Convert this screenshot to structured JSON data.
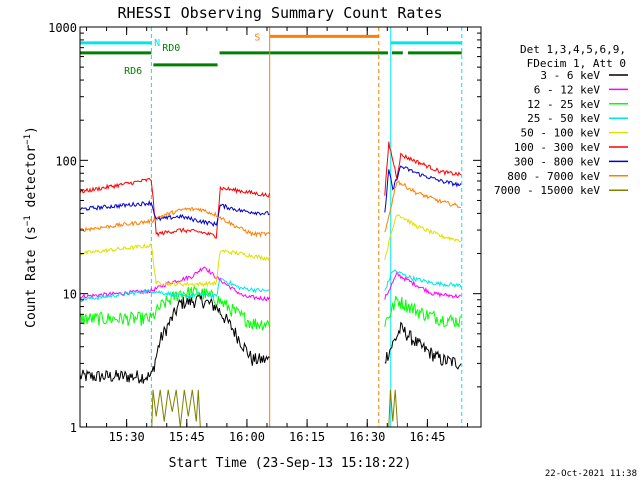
{
  "chart_data": {
    "type": "line",
    "title": "RHESSI Observing Summary Count Rates",
    "xlabel": "Start Time (23-Sep-13 15:18:22)",
    "ylabel": "Count Rate (s⁻¹ detector⁻¹)",
    "ylabel_base": "Count Rate (s",
    "ylabel_mid": " detector",
    "ylabel_end": ")",
    "ylabel_sup": "−1",
    "yscale": "log",
    "ylim": [
      1,
      1000
    ],
    "xlim_minutes_after_start": [
      0,
      100
    ],
    "x_tick_labels": [
      "15:30",
      "15:45",
      "16:00",
      "16:15",
      "16:30",
      "16:45"
    ],
    "x_tick_minutes": [
      11.63,
      26.63,
      41.63,
      56.63,
      71.63,
      86.63
    ],
    "y_tick_labels": [
      "1",
      "10",
      "100",
      "1000"
    ],
    "y_tick_values": [
      1,
      10,
      100,
      1000
    ],
    "grid": false,
    "legend_header": [
      "Det 1,3,4,5,6,9,",
      "FDecim 1, Att 0"
    ],
    "legend_position": "right",
    "footer_date": "22-Oct-2021 11:38",
    "flags": [
      {
        "label": "N",
        "color": "#00e5e5",
        "y": 760,
        "segments": [
          [
            0,
            17.8
          ],
          [
            77.5,
            95.2
          ]
        ]
      },
      {
        "label": "RD0",
        "color": "#008000",
        "y": 640,
        "segments": [
          [
            0,
            17.8
          ],
          [
            34.8,
            76.8
          ],
          [
            77.8,
            80.5
          ],
          [
            81.8,
            95.2
          ]
        ]
      },
      {
        "label": "RD6",
        "color": "#008000",
        "y": 520,
        "segments": [
          [
            18.3,
            34.3
          ]
        ]
      },
      {
        "label": "S",
        "color": "#ff8000",
        "y": 850,
        "segments": [
          [
            47.3,
            74.5
          ]
        ]
      }
    ],
    "vertical_markers": [
      {
        "minute": 17.8,
        "color": "#00e5e5",
        "style": "dashed"
      },
      {
        "minute": 47.3,
        "color": "#ff8000",
        "style": "solid"
      },
      {
        "minute": 74.5,
        "color": "#ff8000",
        "style": "dashed"
      },
      {
        "minute": 77.5,
        "color": "#00e5e5",
        "style": "solid"
      },
      {
        "minute": 95.2,
        "color": "#00e5e5",
        "style": "dashed"
      }
    ],
    "gap_minutes": [
      47.3,
      75.8
    ],
    "series": [
      {
        "name": "3 - 6 keV",
        "color": "#000000",
        "points": [
          [
            0,
            2.4
          ],
          [
            17.8,
            2.4
          ],
          [
            20,
            4.5
          ],
          [
            25,
            8.5
          ],
          [
            30,
            9
          ],
          [
            34,
            8
          ],
          [
            38,
            5.5
          ],
          [
            43,
            3.2
          ],
          [
            46,
            3.2
          ],
          [
            76,
            3.2
          ],
          [
            80,
            5.5
          ],
          [
            85,
            4
          ],
          [
            90,
            3.2
          ],
          [
            95,
            3
          ]
        ]
      },
      {
        "name": "6 - 12 keV",
        "color": "#ff00ff",
        "points": [
          [
            0,
            9.5
          ],
          [
            17.8,
            10.5
          ],
          [
            22,
            12
          ],
          [
            28,
            13.5
          ],
          [
            31,
            16
          ],
          [
            33,
            14
          ],
          [
            36,
            12
          ],
          [
            41,
            9.5
          ],
          [
            46,
            9.2
          ],
          [
            76,
            9.2
          ],
          [
            79,
            14
          ],
          [
            83,
            12
          ],
          [
            88,
            10
          ],
          [
            95,
            9.5
          ]
        ]
      },
      {
        "name": "12 - 25 keV",
        "color": "#00ff00",
        "points": [
          [
            0,
            6.5
          ],
          [
            17.8,
            6.5
          ],
          [
            20,
            8
          ],
          [
            25,
            10.2
          ],
          [
            30,
            10.2
          ],
          [
            34,
            9.2
          ],
          [
            38,
            7.5
          ],
          [
            43,
            6
          ],
          [
            46,
            6
          ],
          [
            76,
            6
          ],
          [
            79,
            9
          ],
          [
            85,
            7.2
          ],
          [
            90,
            6.5
          ],
          [
            95,
            6.2
          ]
        ]
      },
      {
        "name": "25 - 50 keV",
        "color": "#00e5e5",
        "points": [
          [
            0,
            9
          ],
          [
            17.8,
            10.5
          ],
          [
            22,
            10
          ],
          [
            26,
            9.5
          ],
          [
            30,
            10
          ],
          [
            34,
            9.5
          ],
          [
            35,
            13
          ],
          [
            40,
            11
          ],
          [
            46,
            10.5
          ],
          [
            76,
            10.5
          ],
          [
            78,
            15
          ],
          [
            83,
            13
          ],
          [
            88,
            12
          ],
          [
            95,
            11.5
          ]
        ]
      },
      {
        "name": "50 - 100 keV",
        "color": "#e0e000",
        "points": [
          [
            0,
            20
          ],
          [
            17.8,
            23
          ],
          [
            19,
            12
          ],
          [
            25,
            11.8
          ],
          [
            30,
            11.8
          ],
          [
            34,
            12
          ],
          [
            35,
            21
          ],
          [
            40,
            20
          ],
          [
            46,
            18.5
          ],
          [
            76,
            18.5
          ],
          [
            79,
            40
          ],
          [
            84,
            32
          ],
          [
            90,
            27
          ],
          [
            95,
            25
          ]
        ]
      },
      {
        "name": "100 - 300 keV",
        "color": "#ff0000",
        "points": [
          [
            0,
            58
          ],
          [
            17.8,
            72
          ],
          [
            19,
            28
          ],
          [
            25,
            30
          ],
          [
            30,
            29
          ],
          [
            34,
            27
          ],
          [
            35,
            62
          ],
          [
            40,
            59
          ],
          [
            46,
            55
          ],
          [
            76,
            55
          ],
          [
            77,
            135
          ],
          [
            79,
            75
          ],
          [
            80,
            110
          ],
          [
            85,
            95
          ],
          [
            90,
            82
          ],
          [
            95,
            78
          ]
        ]
      },
      {
        "name": "300 - 800 keV",
        "color": "#0000d0",
        "points": [
          [
            0,
            43
          ],
          [
            17.8,
            48
          ],
          [
            19,
            36
          ],
          [
            25,
            38
          ],
          [
            30,
            35
          ],
          [
            34,
            33
          ],
          [
            35,
            46
          ],
          [
            40,
            42
          ],
          [
            46,
            40
          ],
          [
            76,
            40
          ],
          [
            77,
            85
          ],
          [
            78,
            60
          ],
          [
            80,
            90
          ],
          [
            85,
            78
          ],
          [
            90,
            70
          ],
          [
            95,
            65
          ]
        ]
      },
      {
        "name": "800 - 7000 keV",
        "color": "#ff8000",
        "points": [
          [
            0,
            30
          ],
          [
            17.8,
            35
          ],
          [
            20,
            38
          ],
          [
            26,
            43
          ],
          [
            30,
            43
          ],
          [
            34,
            39
          ],
          [
            38,
            33
          ],
          [
            43,
            28
          ],
          [
            46,
            28
          ],
          [
            76,
            28
          ],
          [
            79,
            70
          ],
          [
            84,
            57
          ],
          [
            90,
            49
          ],
          [
            95,
            45
          ]
        ]
      },
      {
        "name": "7000 - 15000 keV",
        "color": "#808000",
        "points": [
          [
            17.9,
            1.0
          ],
          [
            18.2,
            1.9
          ],
          [
            19,
            1.2
          ],
          [
            20,
            1.9
          ],
          [
            21,
            1.1
          ],
          [
            22,
            1.9
          ],
          [
            23,
            1.3
          ],
          [
            24,
            1.9
          ],
          [
            25,
            1.0
          ],
          [
            26,
            1.9
          ],
          [
            27,
            1.2
          ],
          [
            28,
            1.9
          ],
          [
            29,
            1.1
          ],
          [
            29.5,
            1.9
          ],
          [
            30,
            1.0
          ],
          [
            77,
            1.0
          ],
          [
            77.4,
            1.9
          ],
          [
            78,
            1.1
          ],
          [
            78.6,
            1.9
          ],
          [
            79.2,
            1.0
          ]
        ]
      }
    ]
  }
}
